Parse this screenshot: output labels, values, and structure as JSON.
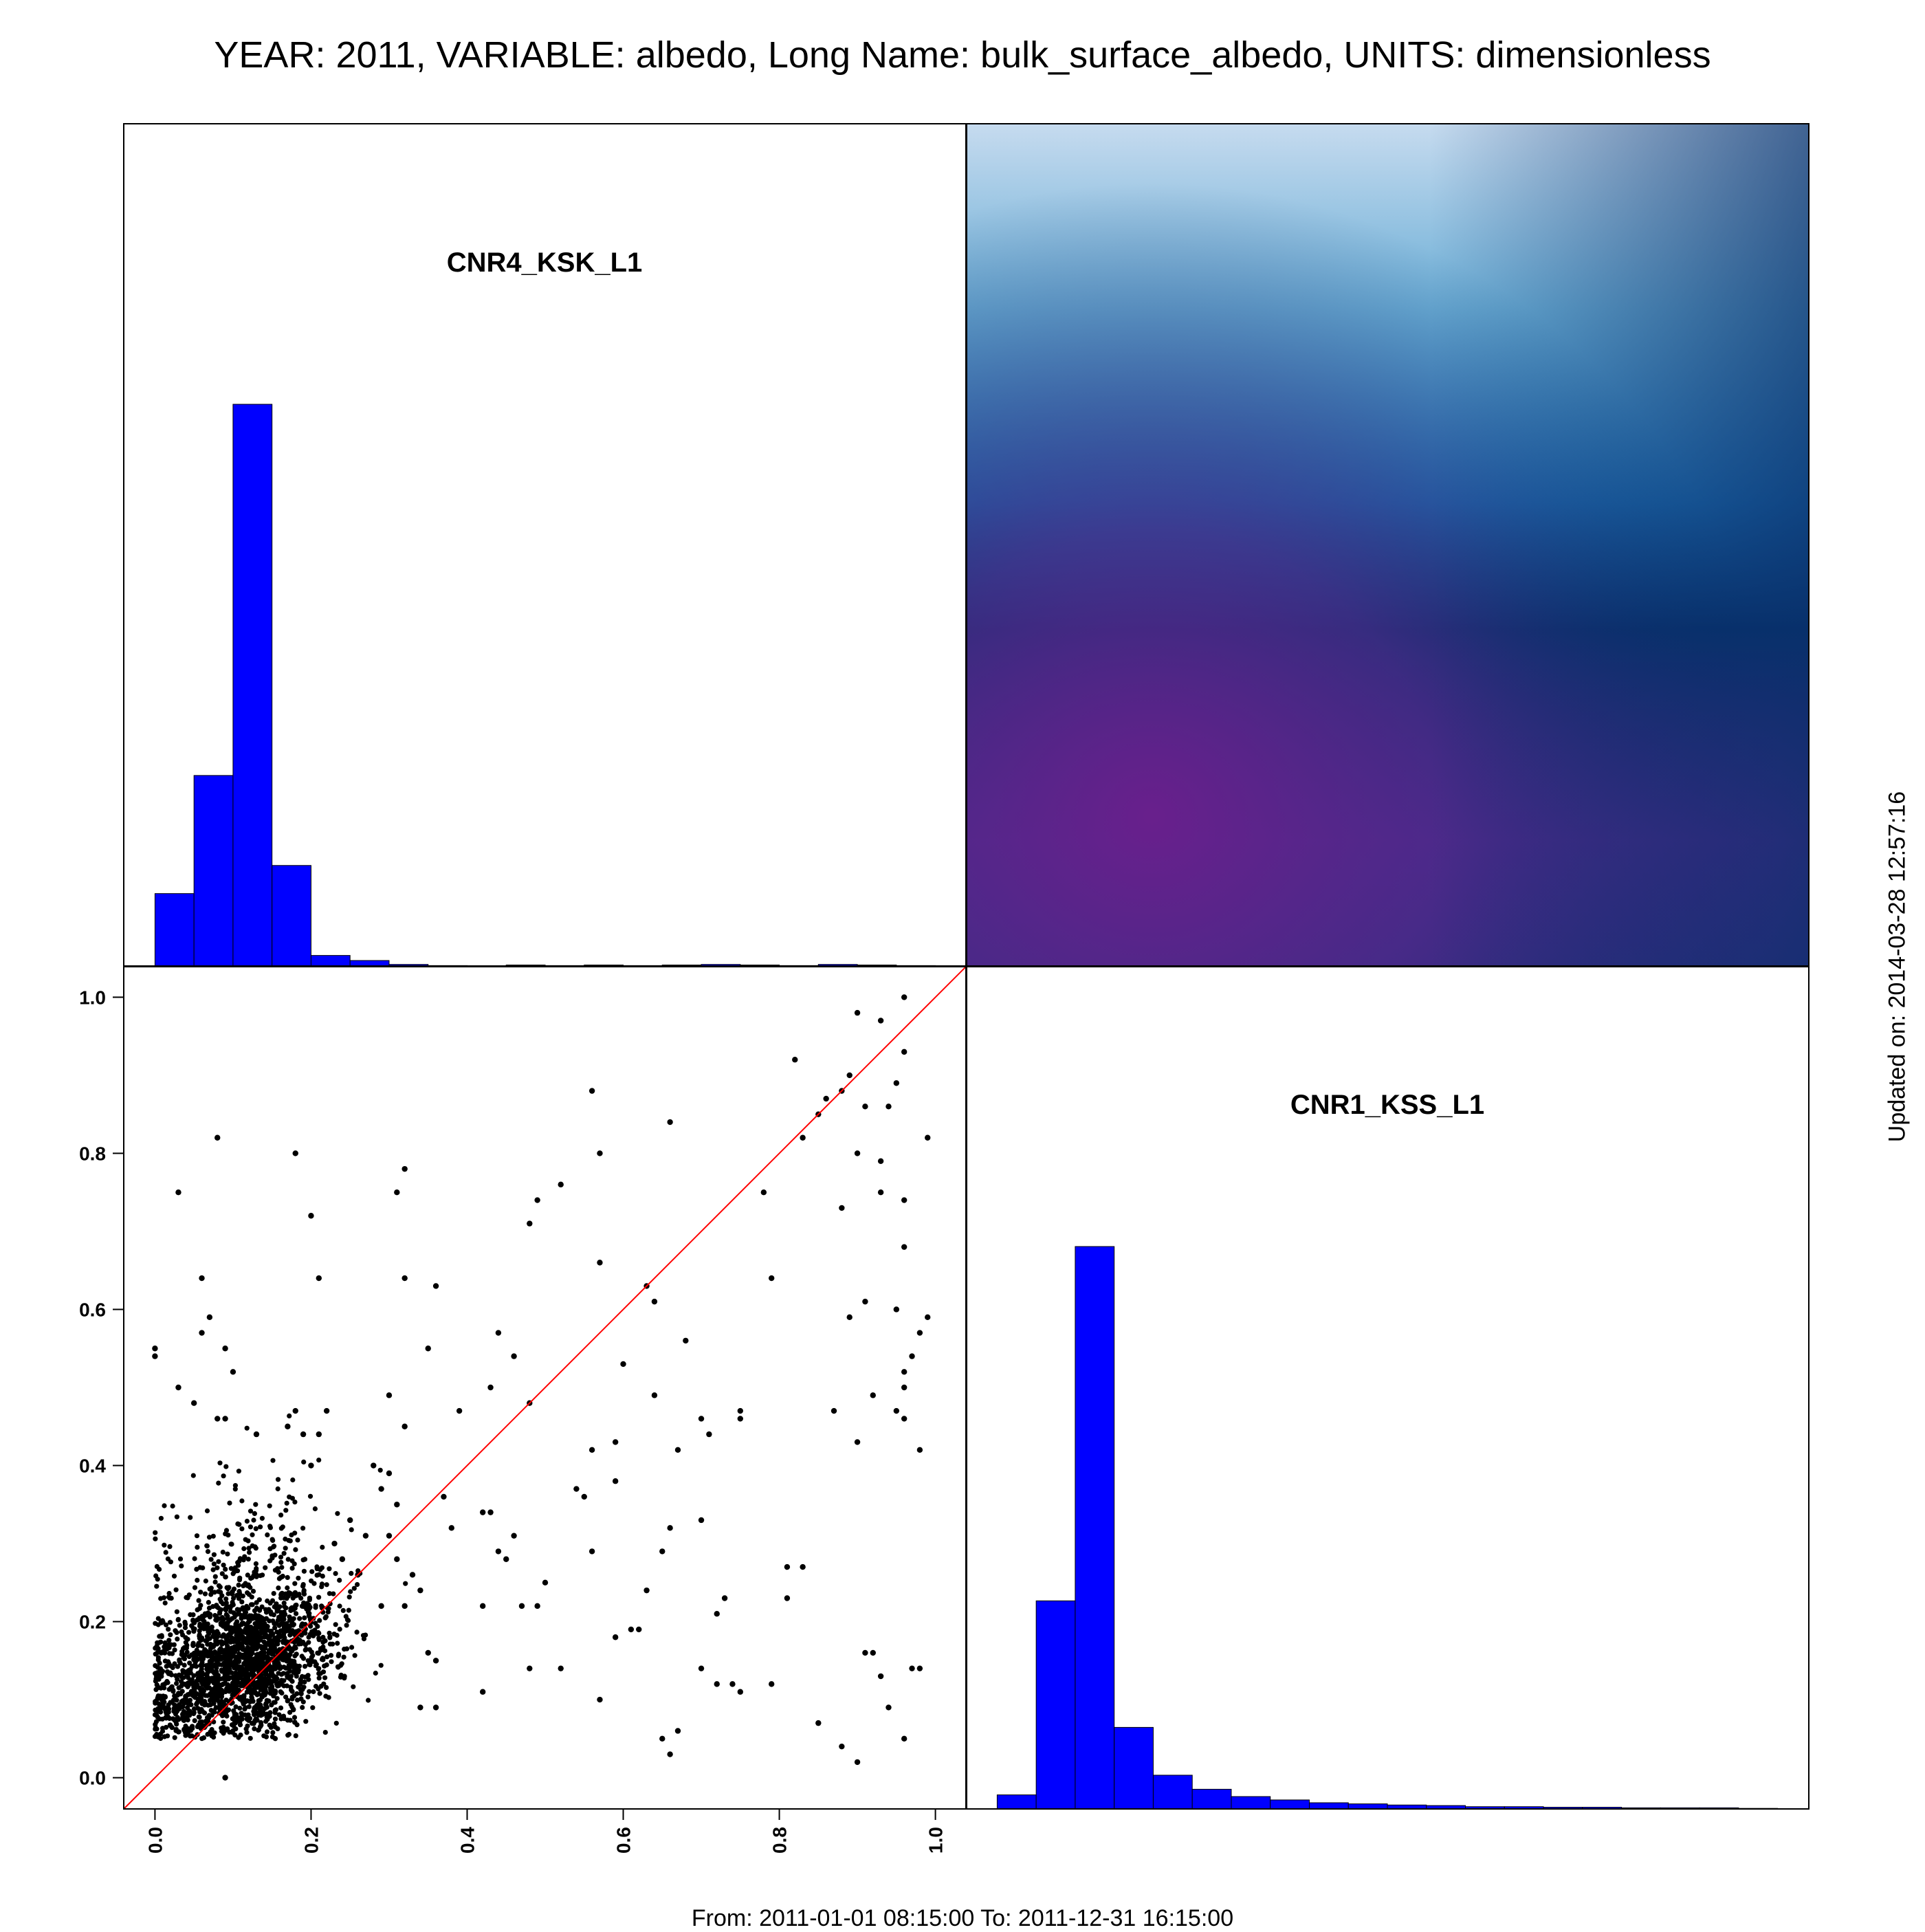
{
  "title": "YEAR: 2011, VARIABLE: albedo, Long Name: bulk_surface_albedo, UNITS: dimensionless",
  "footer": "From: 2011-01-01 08:15:00 To: 2011-12-31 16:15:00",
  "updated": "Updated on: 2014-03-28 12:57:16",
  "colors": {
    "histogram_fill": "#0000ff",
    "diagonal_line": "#ff0000",
    "points": "#000000",
    "density_gradient": [
      "#c6dbef",
      "#6baed6",
      "#2171b5",
      "#08306b",
      "#54278f",
      "#6a1f8c",
      "#08306b"
    ]
  },
  "chart_data": [
    {
      "type": "bar",
      "name": "histogram-top-left",
      "title": "CNR4_KSK_L1",
      "bin_edges": [
        0.0,
        0.05,
        0.1,
        0.15,
        0.2,
        0.25,
        0.3,
        0.35,
        0.4,
        0.45,
        0.5,
        0.55,
        0.6,
        0.65,
        0.7,
        0.75,
        0.8,
        0.85,
        0.9,
        0.95,
        1.0
      ],
      "values": [
        0.13,
        0.34,
        1.0,
        0.18,
        0.02,
        0.011,
        0.004,
        0.002,
        0.001,
        0.003,
        0.002,
        0.003,
        0.002,
        0.003,
        0.004,
        0.003,
        0.002,
        0.004,
        0.003,
        0.002
      ],
      "x_range": [
        -0.04,
        1.04
      ]
    },
    {
      "type": "heatmap",
      "name": "density-top-right",
      "description_colors": "smoothed 2D density, light blue top to purple lower-left"
    },
    {
      "type": "scatter",
      "name": "scatter-bottom-left",
      "x_ticks": [
        "0.0",
        "0.2",
        "0.4",
        "0.6",
        "0.8",
        "1.0"
      ],
      "y_ticks": [
        "0.0",
        "0.2",
        "0.4",
        "0.6",
        "0.8",
        "1.0"
      ],
      "xlim": [
        -0.04,
        1.04
      ],
      "ylim": [
        -0.04,
        1.04
      ],
      "reference_line": "y = x",
      "points": [
        [
          0.82,
          0.92
        ],
        [
          0.9,
          0.98
        ],
        [
          0.93,
          0.97
        ],
        [
          0.96,
          1.0
        ],
        [
          0.95,
          0.89
        ],
        [
          0.96,
          0.93
        ],
        [
          0.89,
          0.9
        ],
        [
          0.88,
          0.88
        ],
        [
          0.86,
          0.87
        ],
        [
          0.85,
          0.85
        ],
        [
          0.91,
          0.86
        ],
        [
          0.94,
          0.86
        ],
        [
          0.99,
          0.82
        ],
        [
          0.9,
          0.8
        ],
        [
          0.93,
          0.79
        ],
        [
          0.83,
          0.82
        ],
        [
          0.88,
          0.73
        ],
        [
          0.93,
          0.75
        ],
        [
          0.96,
          0.74
        ],
        [
          0.96,
          0.68
        ],
        [
          0.78,
          0.75
        ],
        [
          0.66,
          0.84
        ],
        [
          0.56,
          0.88
        ],
        [
          0.57,
          0.8
        ],
        [
          0.49,
          0.74
        ],
        [
          0.52,
          0.76
        ],
        [
          0.48,
          0.71
        ],
        [
          0.57,
          0.66
        ],
        [
          0.63,
          0.63
        ],
        [
          0.64,
          0.61
        ],
        [
          0.79,
          0.64
        ],
        [
          0.91,
          0.61
        ],
        [
          0.89,
          0.59
        ],
        [
          0.95,
          0.6
        ],
        [
          0.99,
          0.59
        ],
        [
          0.98,
          0.57
        ],
        [
          0.97,
          0.54
        ],
        [
          0.96,
          0.52
        ],
        [
          0.96,
          0.5
        ],
        [
          0.92,
          0.49
        ],
        [
          0.95,
          0.47
        ],
        [
          0.96,
          0.46
        ],
        [
          0.98,
          0.42
        ],
        [
          0.9,
          0.43
        ],
        [
          0.87,
          0.47
        ],
        [
          0.6,
          0.53
        ],
        [
          0.64,
          0.49
        ],
        [
          0.68,
          0.56
        ],
        [
          0.56,
          0.42
        ],
        [
          0.59,
          0.43
        ],
        [
          0.59,
          0.38
        ],
        [
          0.67,
          0.42
        ],
        [
          0.7,
          0.46
        ],
        [
          0.71,
          0.44
        ],
        [
          0.75,
          0.47
        ],
        [
          0.75,
          0.46
        ],
        [
          0.48,
          0.48
        ],
        [
          0.46,
          0.54
        ],
        [
          0.44,
          0.57
        ],
        [
          0.43,
          0.5
        ],
        [
          0.39,
          0.47
        ],
        [
          0.35,
          0.55
        ],
        [
          0.32,
          0.64
        ],
        [
          0.36,
          0.63
        ],
        [
          0.31,
          0.75
        ],
        [
          0.32,
          0.78
        ],
        [
          0.2,
          0.72
        ],
        [
          0.18,
          0.8
        ],
        [
          0.03,
          0.75
        ],
        [
          0.08,
          0.82
        ],
        [
          0.21,
          0.64
        ],
        [
          0.3,
          0.49
        ],
        [
          0.32,
          0.45
        ],
        [
          0.52,
          0.14
        ],
        [
          0.48,
          0.14
        ],
        [
          0.57,
          0.1
        ],
        [
          0.59,
          0.18
        ],
        [
          0.62,
          0.19
        ],
        [
          0.65,
          0.05
        ],
        [
          0.66,
          0.03
        ],
        [
          0.67,
          0.06
        ],
        [
          0.7,
          0.14
        ],
        [
          0.72,
          0.12
        ],
        [
          0.74,
          0.12
        ],
        [
          0.75,
          0.11
        ],
        [
          0.79,
          0.12
        ],
        [
          0.81,
          0.27
        ],
        [
          0.83,
          0.27
        ],
        [
          0.81,
          0.23
        ],
        [
          0.85,
          0.07
        ],
        [
          0.88,
          0.04
        ],
        [
          0.9,
          0.02
        ],
        [
          0.91,
          0.16
        ],
        [
          0.92,
          0.16
        ],
        [
          0.93,
          0.13
        ],
        [
          0.94,
          0.09
        ],
        [
          0.96,
          0.05
        ],
        [
          0.97,
          0.14
        ],
        [
          0.98,
          0.14
        ],
        [
          0.72,
          0.21
        ],
        [
          0.73,
          0.23
        ],
        [
          0.7,
          0.33
        ],
        [
          0.66,
          0.32
        ],
        [
          0.63,
          0.24
        ],
        [
          0.65,
          0.29
        ],
        [
          0.55,
          0.36
        ],
        [
          0.56,
          0.29
        ],
        [
          0.61,
          0.19
        ],
        [
          0.54,
          0.37
        ],
        [
          0.44,
          0.29
        ],
        [
          0.47,
          0.22
        ],
        [
          0.5,
          0.25
        ],
        [
          0.49,
          0.22
        ],
        [
          0.43,
          0.34
        ],
        [
          0.42,
          0.34
        ],
        [
          0.46,
          0.31
        ],
        [
          0.45,
          0.28
        ],
        [
          0.42,
          0.22
        ],
        [
          0.37,
          0.36
        ],
        [
          0.38,
          0.32
        ],
        [
          0.36,
          0.15
        ],
        [
          0.35,
          0.16
        ],
        [
          0.36,
          0.09
        ],
        [
          0.34,
          0.09
        ],
        [
          0.42,
          0.11
        ],
        [
          0.09,
          0.0
        ],
        [
          0.0,
          0.55
        ],
        [
          0.0,
          0.54
        ],
        [
          0.06,
          0.64
        ],
        [
          0.07,
          0.59
        ],
        [
          0.06,
          0.57
        ],
        [
          0.09,
          0.55
        ],
        [
          0.1,
          0.52
        ],
        [
          0.03,
          0.5
        ],
        [
          0.05,
          0.48
        ],
        [
          0.08,
          0.46
        ],
        [
          0.09,
          0.46
        ],
        [
          0.17,
          0.45
        ],
        [
          0.19,
          0.44
        ],
        [
          0.21,
          0.44
        ],
        [
          0.22,
          0.47
        ],
        [
          0.18,
          0.47
        ],
        [
          0.13,
          0.44
        ],
        [
          0.2,
          0.4
        ],
        [
          0.28,
          0.4
        ],
        [
          0.3,
          0.39
        ],
        [
          0.29,
          0.37
        ],
        [
          0.31,
          0.35
        ],
        [
          0.3,
          0.31
        ],
        [
          0.27,
          0.31
        ],
        [
          0.25,
          0.33
        ],
        [
          0.23,
          0.3
        ],
        [
          0.24,
          0.28
        ],
        [
          0.26,
          0.26
        ],
        [
          0.31,
          0.28
        ],
        [
          0.33,
          0.26
        ],
        [
          0.34,
          0.24
        ],
        [
          0.32,
          0.22
        ],
        [
          0.29,
          0.22
        ]
      ],
      "dense_cluster": {
        "x_center": 0.11,
        "y_center": 0.14,
        "x_spread": 0.06,
        "y_spread": 0.045,
        "count": 2200
      }
    },
    {
      "type": "bar",
      "name": "histogram-bottom-right",
      "title": "CNR1_KSS_L1",
      "bin_edges": [
        0.0,
        0.05,
        0.1,
        0.15,
        0.2,
        0.25,
        0.3,
        0.35,
        0.4,
        0.45,
        0.5,
        0.55,
        0.6,
        0.65,
        0.7,
        0.75,
        0.8,
        0.85,
        0.9,
        0.95,
        1.0
      ],
      "values": [
        0.025,
        0.37,
        1.0,
        0.145,
        0.06,
        0.035,
        0.022,
        0.016,
        0.011,
        0.009,
        0.007,
        0.006,
        0.004,
        0.004,
        0.003,
        0.003,
        0.002,
        0.002,
        0.002,
        0.001
      ],
      "x_range": [
        -0.04,
        1.04
      ]
    }
  ]
}
